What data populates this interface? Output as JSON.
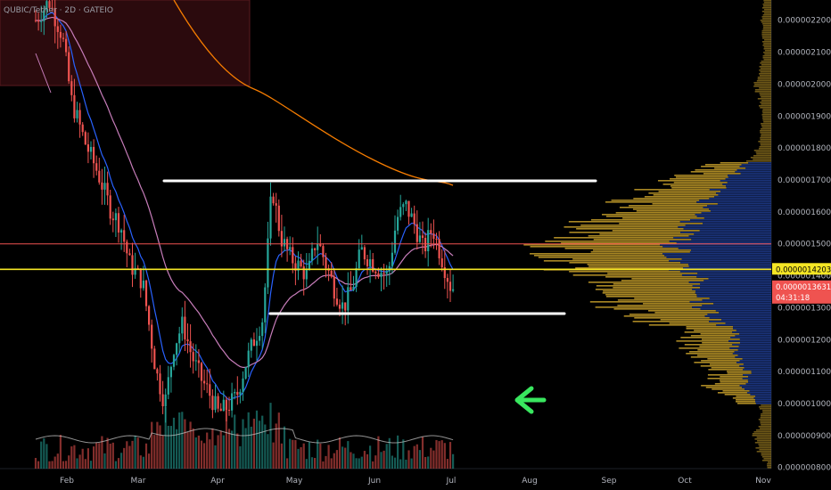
{
  "header": {
    "symbol": "QUBIC/Tether · 2D · GATEIO"
  },
  "chart_data": {
    "type": "candlestick",
    "price_axis": {
      "ticks": [
        "0.0000022000",
        "0.0000021000",
        "0.0000020000",
        "0.0000019000",
        "0.0000018000",
        "0.0000017000",
        "0.0000016000",
        "0.0000015000",
        "0.0000014000",
        "0.0000013000",
        "0.0000012000",
        "0.0000011000",
        "0.0000010000",
        "0.0000009000",
        "0.0000008000"
      ],
      "tick_values": [
        22,
        21,
        20,
        19,
        18,
        17,
        16,
        15,
        14,
        13,
        12,
        11,
        10,
        9,
        8
      ],
      "unit_note": "values in 1e-7 USDT"
    },
    "time_axis": {
      "labels": [
        "Feb",
        "Mar",
        "Apr",
        "May",
        "Jun",
        "Jul",
        "Aug",
        "Sep",
        "Oct",
        "Nov"
      ]
    },
    "price_tags": [
      {
        "label": "0.0000014203",
        "value": 14.203,
        "color": "#f5e625",
        "text_color": "#000000"
      },
      {
        "label": "0.0000013631",
        "sub": "04:31:18",
        "value": 13.631,
        "color": "#ef5350",
        "text_color": "#ffffff"
      }
    ],
    "horizontal_levels": [
      {
        "value": 15.0,
        "color": "#ef5350"
      },
      {
        "value": 14.203,
        "color": "#f5e625"
      }
    ],
    "drawn_lines": [
      {
        "from": [
          "Apr 20",
          16.95
        ],
        "to": [
          "Sep 01",
          16.95
        ],
        "color": "#ffffff"
      },
      {
        "from": [
          "Apr 20",
          12.85
        ],
        "to": [
          "Aug 14",
          12.85
        ],
        "color": "#ffffff"
      }
    ],
    "arrow": {
      "direction": "left",
      "color": "#39e75f"
    },
    "colors": {
      "up": "#26a69a",
      "down": "#ef5350",
      "ema_fast": "#2962ff",
      "ema_mid": "#c77dba",
      "ema_slow": "#f57c00",
      "volume_profile": "#c8a02a",
      "volume_profile_value_area": "#1e3a8a"
    }
  }
}
